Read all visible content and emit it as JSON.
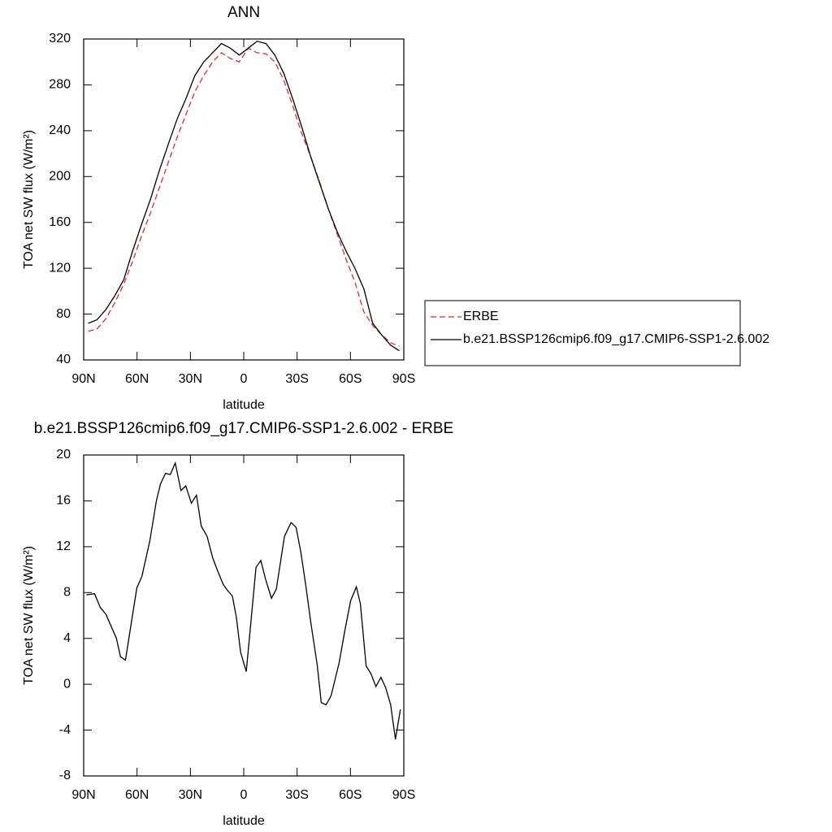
{
  "chart_data": [
    {
      "type": "line",
      "title": "ANN",
      "x_label": "latitude",
      "y_label": "TOA net SW flux (W/m²)",
      "x": [
        87.5,
        82.5,
        77.5,
        72.5,
        67.5,
        62.5,
        57.5,
        52.5,
        47.5,
        42.5,
        37.5,
        32.5,
        27.5,
        22.5,
        17.5,
        12.5,
        7.5,
        2.5,
        -2.5,
        -7.5,
        -12.5,
        -17.5,
        -22.5,
        -27.5,
        -32.5,
        -37.5,
        -42.5,
        -47.5,
        -52.5,
        -57.5,
        -62.5,
        -67.5,
        -72.5,
        -77.5,
        -82.5,
        -87.5
      ],
      "series": [
        {
          "name": "ERBE",
          "color": "#e8282d",
          "style": "dashed",
          "values": [
            65,
            67,
            76,
            90,
            106,
            126,
            148,
            168,
            190,
            212,
            234,
            254,
            274,
            288,
            300,
            308,
            303,
            300,
            312,
            308,
            307,
            300,
            284,
            262,
            238,
            218,
            196,
            172,
            150,
            128,
            108,
            82,
            70,
            62,
            55,
            52
          ]
        },
        {
          "name": "b.e21.BSSP126cmip6.f09_g17.CMIP6-SSP1-2.6.002",
          "color": "#000000",
          "style": "solid",
          "values": [
            72,
            75,
            84,
            96,
            110,
            135,
            158,
            180,
            205,
            228,
            250,
            268,
            288,
            300,
            308,
            316,
            312,
            306,
            312,
            318,
            316,
            306,
            290,
            268,
            244,
            218,
            195,
            172,
            152,
            135,
            120,
            102,
            72,
            62,
            53,
            48
          ]
        }
      ],
      "xlim": [
        90,
        -90
      ],
      "xticks": [
        {
          "value": 90,
          "label": "90N"
        },
        {
          "value": 60,
          "label": "60N"
        },
        {
          "value": 30,
          "label": "30N"
        },
        0,
        {
          "value": -30,
          "label": "30S"
        },
        {
          "value": -60,
          "label": "60S"
        },
        {
          "value": -90,
          "label": "90S"
        }
      ],
      "ylim": [
        40,
        320
      ],
      "yticks": [
        40,
        80,
        120,
        160,
        200,
        240,
        280,
        320
      ],
      "legend": "right"
    },
    {
      "type": "line",
      "title": "b.e21.BSSP126cmip6.f09_g17.CMIP6-SSP1-2.6.002 - ERBE",
      "x_label": "latitude",
      "y_label": "TOA net SW flux (W/m²)",
      "x": [
        88.5,
        83.9,
        80.7,
        77.5,
        71.6,
        69.3,
        66.5,
        60.1,
        57.3,
        52.8,
        49.1,
        46.8,
        44,
        41.3,
        38.5,
        35.3,
        32.6,
        29.4,
        26.6,
        23.9,
        20.6,
        17.4,
        14.7,
        11.5,
        9.2,
        6.4,
        4.1,
        1.8,
        -1.4,
        -6.9,
        -9.6,
        -12.4,
        -15.6,
        -18.3,
        -22.9,
        -26.6,
        -29.4,
        -32.1,
        -34.9,
        -37.6,
        -41.3,
        -43.6,
        -46.3,
        -49.1,
        -53.7,
        -56.9,
        -60.1,
        -63.3,
        -65.6,
        -68.8,
        -71.6,
        -74.3,
        -77.1,
        -79.8,
        -82.6,
        -85.3,
        -88.1
      ],
      "values": [
        7.8,
        7.9,
        6.7,
        6.1,
        4,
        2.4,
        2.1,
        8.4,
        9.4,
        12.5,
        16,
        17.5,
        18.4,
        18.3,
        19.3,
        16.9,
        17.3,
        15.8,
        16.5,
        13.8,
        12.9,
        11,
        9.9,
        8.7,
        8.2,
        7.7,
        5.8,
        2.8,
        1.1,
        10.2,
        10.8,
        9.1,
        7.5,
        8.3,
        12.9,
        14.1,
        13.7,
        11.5,
        8.6,
        5.5,
        1.7,
        -1.6,
        -1.8,
        -1,
        1.9,
        4.7,
        7.3,
        8.5,
        7,
        1.6,
        0.9,
        -0.2,
        0.6,
        -0.3,
        -1.8,
        -4.8,
        -2.2
      ],
      "color": "#000000",
      "xlim": [
        90,
        -90
      ],
      "xticks": [
        {
          "value": 90,
          "label": "90N"
        },
        {
          "value": 60,
          "label": "60N"
        },
        {
          "value": 30,
          "label": "30N"
        },
        0,
        {
          "value": -30,
          "label": "30S"
        },
        {
          "value": -60,
          "label": "60S"
        },
        {
          "value": -90,
          "label": "90S"
        }
      ],
      "ylim": [
        -8,
        20
      ],
      "yticks": [
        -8,
        -4,
        0,
        4,
        8,
        12,
        16,
        20
      ]
    }
  ]
}
